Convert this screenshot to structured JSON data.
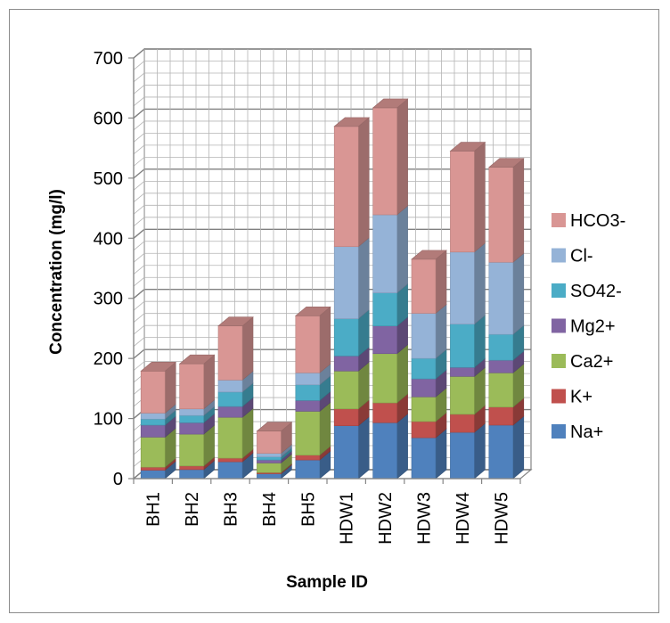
{
  "chart_data": {
    "type": "bar",
    "stacked": true,
    "three_d": true,
    "title": "",
    "xlabel": "Sample ID",
    "ylabel": "Concentration (mg/l)",
    "ylim": [
      0,
      700
    ],
    "yticks": [
      0,
      100,
      200,
      300,
      400,
      500,
      600,
      700
    ],
    "grid": true,
    "legend_position": "right",
    "categories": [
      "BH1",
      "BH2",
      "BH3",
      "BH4",
      "BH5",
      "HDW1",
      "HDW2",
      "HDW3",
      "HDW4",
      "HDW5"
    ],
    "series": [
      {
        "name": "Na+",
        "color": "#4F81BD",
        "values": [
          14,
          15,
          28,
          8,
          31,
          88,
          93,
          68,
          77,
          89
        ]
      },
      {
        "name": "K+",
        "color": "#C0504D",
        "values": [
          5,
          6,
          6,
          2,
          8,
          28,
          33,
          27,
          30,
          30
        ]
      },
      {
        "name": "Ca2+",
        "color": "#9BBB59",
        "values": [
          50,
          53,
          68,
          16,
          73,
          63,
          82,
          41,
          63,
          57
        ]
      },
      {
        "name": "Mg2+",
        "color": "#8064A2",
        "values": [
          20,
          19,
          18,
          5,
          18,
          25,
          46,
          30,
          15,
          21
        ]
      },
      {
        "name": "SO42-",
        "color": "#4BACC6",
        "values": [
          10,
          12,
          24,
          5,
          26,
          62,
          55,
          34,
          72,
          43
        ]
      },
      {
        "name": "Cl-",
        "color": "#95B3D7",
        "values": [
          10,
          11,
          20,
          6,
          20,
          120,
          130,
          75,
          120,
          120
        ]
      },
      {
        "name": "HCO3-",
        "color": "#D99694",
        "values": [
          70,
          75,
          90,
          37,
          95,
          200,
          178,
          90,
          168,
          158
        ]
      }
    ]
  }
}
